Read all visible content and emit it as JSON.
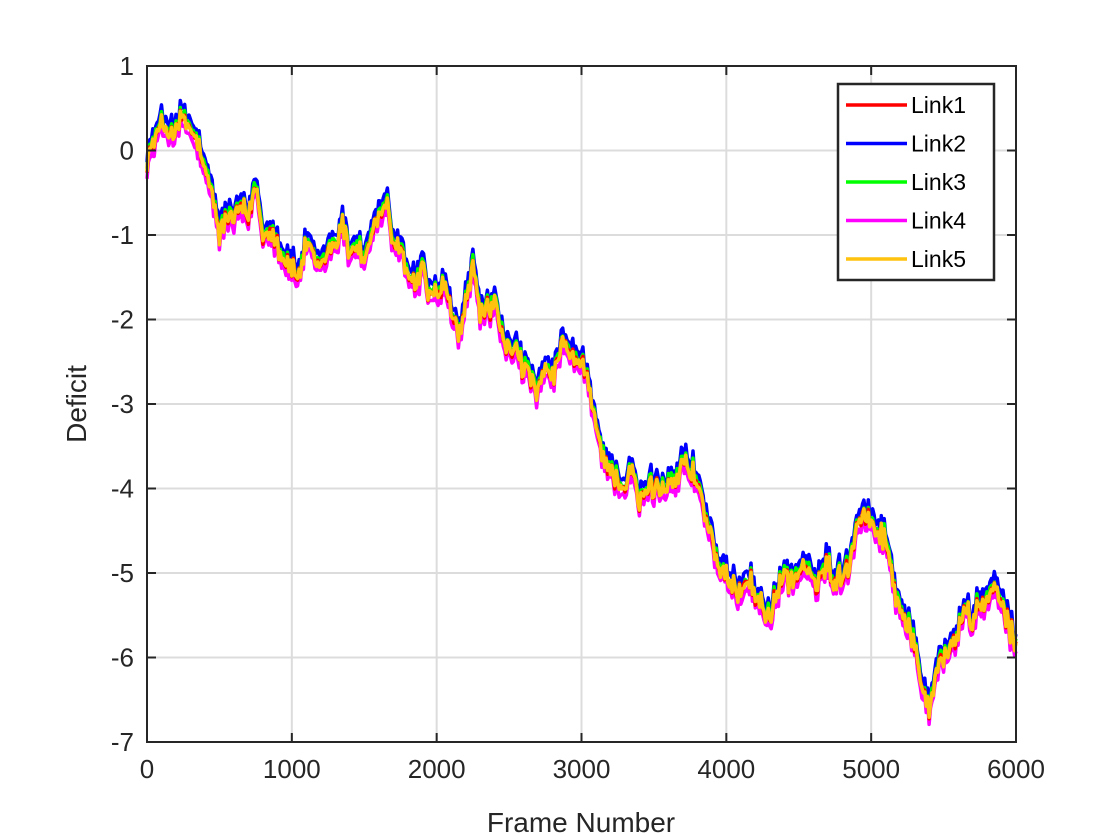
{
  "chart_data": {
    "type": "line",
    "title": "",
    "xlabel": "Frame Number",
    "ylabel": "Deficit",
    "xlim": [
      0,
      6000
    ],
    "ylim": [
      -7,
      1
    ],
    "xticks": [
      0,
      1000,
      2000,
      3000,
      4000,
      5000,
      6000
    ],
    "yticks": [
      1,
      0,
      -1,
      -2,
      -3,
      -4,
      -5,
      -6,
      -7
    ],
    "xtick_labels": [
      "0",
      "1000",
      "2000",
      "3000",
      "4000",
      "5000",
      "6000"
    ],
    "ytick_labels": [
      "1",
      "0",
      "-1",
      "-2",
      "-3",
      "-4",
      "-5",
      "-6",
      "-7"
    ],
    "grid": true,
    "legend_position": "top-right",
    "base_trend": {
      "x": [
        0,
        100,
        200,
        250,
        300,
        350,
        400,
        450,
        500,
        550,
        600,
        650,
        700,
        750,
        800,
        850,
        900,
        950,
        1000,
        1050,
        1100,
        1150,
        1200,
        1250,
        1300,
        1350,
        1400,
        1450,
        1500,
        1550,
        1600,
        1650,
        1700,
        1750,
        1800,
        1850,
        1900,
        1950,
        2000,
        2050,
        2100,
        2150,
        2200,
        2250,
        2300,
        2350,
        2400,
        2450,
        2500,
        2550,
        2600,
        2650,
        2700,
        2750,
        2800,
        2850,
        2900,
        2950,
        3000,
        3050,
        3100,
        3150,
        3200,
        3250,
        3300,
        3350,
        3400,
        3450,
        3500,
        3550,
        3600,
        3650,
        3700,
        3750,
        3800,
        3850,
        3900,
        3950,
        4000,
        4050,
        4100,
        4150,
        4200,
        4250,
        4300,
        4350,
        4400,
        4450,
        4500,
        4550,
        4600,
        4650,
        4700,
        4750,
        4800,
        4850,
        4900,
        4950,
        5000,
        5050,
        5100,
        5150,
        5200,
        5250,
        5300,
        5350,
        5400,
        5450,
        5500,
        5550,
        5600,
        5650,
        5700,
        5750,
        5800,
        5850,
        5900,
        5950,
        6000
      ],
      "y": [
        -0.1,
        0.3,
        0.2,
        0.4,
        0.2,
        0.1,
        -0.3,
        -0.5,
        -1.0,
        -0.8,
        -0.8,
        -0.7,
        -0.8,
        -0.4,
        -1.0,
        -0.9,
        -1.1,
        -1.3,
        -1.4,
        -1.5,
        -1.1,
        -1.3,
        -1.4,
        -1.2,
        -1.1,
        -0.9,
        -1.2,
        -1.1,
        -1.3,
        -1.0,
        -0.8,
        -0.6,
        -1.2,
        -1.1,
        -1.5,
        -1.6,
        -1.4,
        -1.7,
        -1.7,
        -1.6,
        -1.9,
        -2.2,
        -1.8,
        -1.4,
        -1.9,
        -1.9,
        -1.8,
        -2.2,
        -2.4,
        -2.3,
        -2.6,
        -2.7,
        -2.9,
        -2.6,
        -2.7,
        -2.4,
        -2.3,
        -2.5,
        -2.5,
        -2.8,
        -3.3,
        -3.6,
        -3.8,
        -3.9,
        -4.0,
        -3.8,
        -4.2,
        -4.0,
        -4.0,
        -4.0,
        -3.9,
        -3.9,
        -3.7,
        -3.8,
        -3.9,
        -4.3,
        -4.6,
        -5.0,
        -5.1,
        -5.2,
        -5.2,
        -5.0,
        -5.3,
        -5.4,
        -5.5,
        -5.3,
        -5.0,
        -5.1,
        -5.0,
        -4.9,
        -5.2,
        -5.0,
        -4.9,
        -5.1,
        -5.0,
        -4.9,
        -4.4,
        -4.3,
        -4.4,
        -4.5,
        -4.6,
        -5.1,
        -5.4,
        -5.6,
        -5.9,
        -6.3,
        -6.6,
        -6.1,
        -6.0,
        -5.9,
        -5.7,
        -5.4,
        -5.6,
        -5.4,
        -5.3,
        -5.2,
        -5.4,
        -5.6,
        -5.9
      ]
    },
    "series": [
      {
        "name": "Link1",
        "color": "#ff0000",
        "offset": 0.0
      },
      {
        "name": "Link2",
        "color": "#0000ff",
        "offset": 0.12
      },
      {
        "name": "Link3",
        "color": "#00ff00",
        "offset": 0.04
      },
      {
        "name": "Link4",
        "color": "#ff00ff",
        "offset": -0.08
      },
      {
        "name": "Link5",
        "color": "#ffc20e",
        "offset": 0.0
      }
    ]
  }
}
